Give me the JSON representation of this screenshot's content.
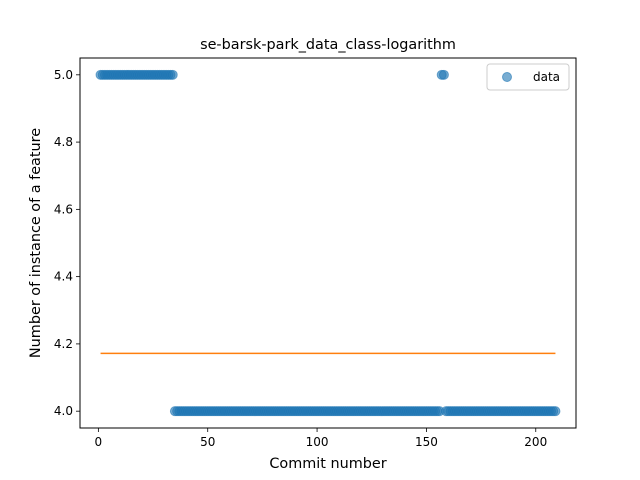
{
  "chart_data": {
    "type": "scatter",
    "title": "se-barsk-park_data_class-logarithm",
    "xlabel": "Commit number",
    "ylabel": "Number of instance of a feature",
    "xlim": [
      -8.4,
      218.4
    ],
    "ylim": [
      3.95,
      5.05
    ],
    "xticks": [
      0,
      50,
      100,
      150,
      200
    ],
    "yticks": [
      4.0,
      4.2,
      4.4,
      4.6,
      4.8,
      5.0
    ],
    "ytick_labels": [
      "4.0",
      "4.2",
      "4.4",
      "4.6",
      "4.8",
      "5.0"
    ],
    "legend": {
      "position": "top-right",
      "entries": [
        "data"
      ]
    },
    "colors": {
      "data": "#1f77b4",
      "fit": "#ff7f0e"
    },
    "series": [
      {
        "name": "data",
        "kind": "scatter",
        "segments": [
          {
            "x_start": 1,
            "x_end": 34,
            "y": 5.0
          },
          {
            "x_start": 35,
            "x_end": 156,
            "y": 4.0
          },
          {
            "x_start": 157,
            "x_end": 158,
            "y": 5.0
          },
          {
            "x_start": 159,
            "x_end": 209,
            "y": 4.0
          }
        ]
      },
      {
        "kind": "line",
        "x": [
          1,
          209
        ],
        "y": [
          4.172,
          4.172
        ]
      }
    ]
  }
}
